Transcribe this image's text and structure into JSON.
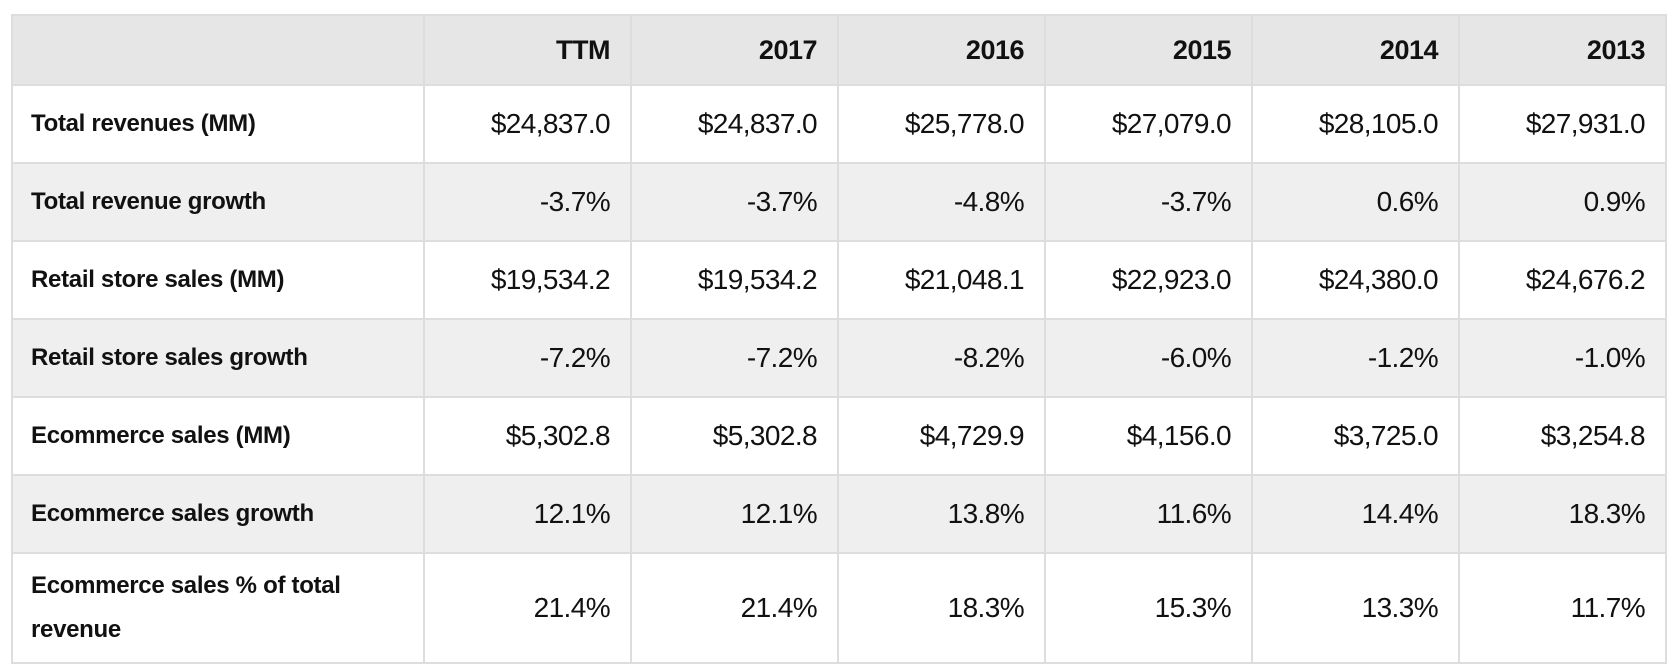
{
  "table": {
    "columns": [
      "",
      "TTM",
      "2017",
      "2016",
      "2015",
      "2014",
      "2013"
    ],
    "rows": [
      {
        "label": "Total revenues (MM)",
        "values": [
          "$24,837.0",
          "$24,837.0",
          "$25,778.0",
          "$27,079.0",
          "$28,105.0",
          "$27,931.0"
        ]
      },
      {
        "label": "Total revenue growth",
        "values": [
          "-3.7%",
          "-3.7%",
          "-4.8%",
          "-3.7%",
          "0.6%",
          "0.9%"
        ]
      },
      {
        "label": "Retail store sales (MM)",
        "values": [
          "$19,534.2",
          "$19,534.2",
          "$21,048.1",
          "$22,923.0",
          "$24,380.0",
          "$24,676.2"
        ]
      },
      {
        "label": "Retail store sales growth",
        "values": [
          "-7.2%",
          "-7.2%",
          "-8.2%",
          "-6.0%",
          "-1.2%",
          "-1.0%"
        ]
      },
      {
        "label": "Ecommerce sales (MM)",
        "values": [
          "$5,302.8",
          "$5,302.8",
          "$4,729.9",
          "$4,156.0",
          "$3,725.0",
          "$3,254.8"
        ]
      },
      {
        "label": "Ecommerce sales growth",
        "values": [
          "12.1%",
          "12.1%",
          "13.8%",
          "11.6%",
          "14.4%",
          "18.3%"
        ]
      },
      {
        "label": "Ecommerce sales % of total revenue",
        "values": [
          "21.4%",
          "21.4%",
          "18.3%",
          "15.3%",
          "13.3%",
          "11.7%"
        ]
      }
    ]
  },
  "colors": {
    "header_bg": "#e6e6e6",
    "row_alt_bg": "#efefef",
    "row_bg": "#ffffff",
    "border": "#dddddd",
    "text": "#111111"
  }
}
